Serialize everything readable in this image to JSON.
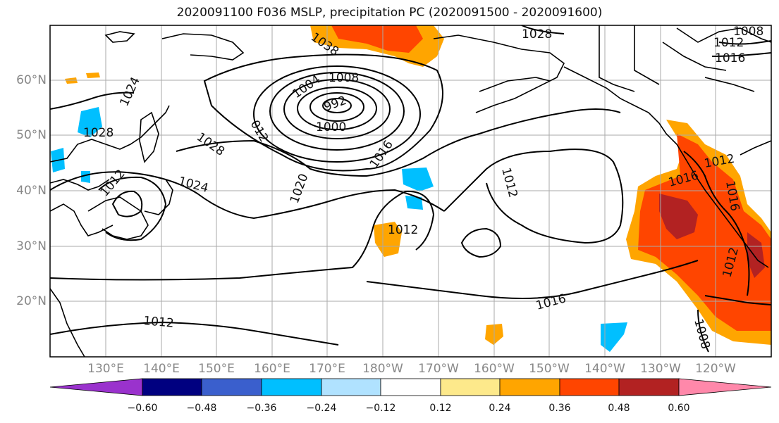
{
  "title": "2020091100 F036 MSLP, precipitation PC (2020091500 - 2020091600)",
  "lat_labels": [
    "60°N",
    "50°N",
    "40°N",
    "30°N",
    "20°N"
  ],
  "lon_labels": [
    "130°E",
    "140°E",
    "150°E",
    "160°E",
    "170°E",
    "180°W",
    "170°W",
    "160°W",
    "150°W",
    "140°W",
    "130°W",
    "120°W"
  ],
  "isobar_labels": [
    "1024",
    "1028",
    "1028",
    "1024",
    "1012",
    "1038",
    "1008",
    "1004",
    "1000",
    "992",
    "012",
    "1016",
    "1020",
    "1012",
    "1012",
    "1028",
    "1012",
    "1008",
    "1016",
    "1012",
    "1016",
    "1016",
    "1012",
    "1016",
    "1012",
    "1008"
  ],
  "colorbar": {
    "ticks": [
      "−0.60",
      "−0.48",
      "−0.36",
      "−0.24",
      "−0.12",
      "0.12",
      "0.24",
      "0.36",
      "0.48",
      "0.60"
    ],
    "colors": [
      "#9a32cd",
      "#000080",
      "#3a5fcd",
      "#00bfff",
      "#b0e2ff",
      "#ffffff",
      "#fde98b",
      "#ffa500",
      "#ff4500",
      "#b22222",
      "#ff88aa"
    ]
  }
}
